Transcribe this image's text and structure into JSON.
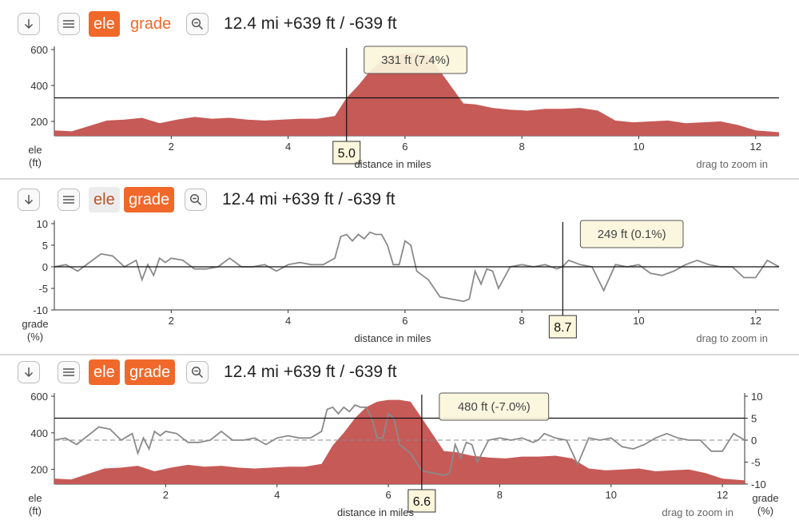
{
  "toolbar": {
    "download_icon": "download-arrow-icon",
    "menu_icon": "hamburger-menu-icon",
    "zoom_icon": "zoom-out-magnifier-icon",
    "ele_label": "ele",
    "grade_label": "grade",
    "summary": "12.4 mi +639 ft / -639 ft"
  },
  "colors": {
    "accent": "#f0692a",
    "elevation_fill": "#c65a57",
    "grade_line": "#8a8a8a",
    "tooltip_bg": "#fbf6dc"
  },
  "panels": [
    {
      "mode": "ele",
      "ele_active": true,
      "grade_active": false,
      "y_label": [
        "ele",
        "(ft)"
      ],
      "x_label": "distance in miles",
      "hint": "drag to zoom in",
      "cursor_x": "5.0",
      "tooltip": "331 ft (7.4%)"
    },
    {
      "mode": "grade",
      "ele_active": false,
      "grade_active": true,
      "y_label": [
        "grade",
        "(%)"
      ],
      "x_label": "distance in miles",
      "hint": "drag to zoom in",
      "cursor_x": "8.7",
      "tooltip": "249 ft (0.1%)"
    },
    {
      "mode": "both",
      "ele_active": true,
      "grade_active": true,
      "y_label": [
        "ele",
        "(ft)"
      ],
      "y2_label": [
        "grade",
        "(%)"
      ],
      "x_label": "distance in miles",
      "hint": "drag to zoom in",
      "cursor_x": "6.6",
      "tooltip": "480 ft (-7.0%)"
    }
  ],
  "chart_data": [
    {
      "type": "area",
      "xlabel": "distance in miles",
      "ylabel": "ele (ft)",
      "xlim": [
        0,
        12.4
      ],
      "ylim": [
        120,
        600
      ],
      "x_ticks": [
        "2",
        "4",
        "6",
        "8",
        "10",
        "12"
      ],
      "y_ticks": [
        "200",
        "400",
        "600"
      ],
      "crosshair": {
        "x": 5.0,
        "y": 331
      },
      "series": [
        {
          "x": [
            0,
            0.3,
            0.6,
            0.9,
            1.2,
            1.5,
            1.8,
            2.1,
            2.4,
            2.7,
            3.0,
            3.3,
            3.6,
            3.9,
            4.2,
            4.5,
            4.8,
            5.0,
            5.2,
            5.4,
            5.6,
            5.8,
            6.0,
            6.2,
            6.4,
            6.6,
            6.8,
            7.0,
            7.2,
            7.5,
            7.8,
            8.1,
            8.4,
            8.7,
            9.0,
            9.3,
            9.6,
            9.9,
            10.2,
            10.5,
            10.8,
            11.1,
            11.4,
            11.7,
            12.0,
            12.4
          ],
          "values": [
            150,
            145,
            175,
            205,
            210,
            220,
            190,
            210,
            225,
            215,
            220,
            210,
            205,
            210,
            215,
            215,
            230,
            331,
            400,
            480,
            540,
            570,
            580,
            580,
            570,
            480,
            390,
            300,
            295,
            275,
            265,
            260,
            270,
            270,
            275,
            260,
            205,
            195,
            200,
            205,
            190,
            195,
            200,
            180,
            150,
            140
          ]
        }
      ]
    },
    {
      "type": "line",
      "xlabel": "distance in miles",
      "ylabel": "grade (%)",
      "xlim": [
        0,
        12.4
      ],
      "ylim": [
        -10,
        10
      ],
      "x_ticks": [
        "2",
        "4",
        "6",
        "8",
        "10",
        "12"
      ],
      "y_ticks": [
        "10",
        "5",
        "0",
        "-5",
        "-10"
      ],
      "crosshair": {
        "x": 8.7,
        "y": 0.1
      },
      "series": [
        {
          "x": [
            0,
            0.2,
            0.4,
            0.6,
            0.8,
            1.0,
            1.2,
            1.4,
            1.5,
            1.6,
            1.7,
            1.8,
            1.9,
            2.0,
            2.2,
            2.4,
            2.6,
            2.8,
            3.0,
            3.2,
            3.4,
            3.6,
            3.8,
            4.0,
            4.2,
            4.4,
            4.6,
            4.8,
            4.9,
            5.0,
            5.1,
            5.2,
            5.3,
            5.4,
            5.5,
            5.6,
            5.7,
            5.8,
            5.9,
            6.0,
            6.1,
            6.2,
            6.3,
            6.4,
            6.6,
            6.8,
            7.0,
            7.1,
            7.2,
            7.3,
            7.4,
            7.5,
            7.6,
            7.8,
            8.0,
            8.2,
            8.4,
            8.6,
            8.7,
            8.8,
            9.0,
            9.2,
            9.4,
            9.6,
            9.8,
            10.0,
            10.2,
            10.4,
            10.6,
            10.8,
            11.0,
            11.2,
            11.4,
            11.6,
            11.8,
            12.0,
            12.2,
            12.4
          ],
          "values": [
            0,
            0.5,
            -1,
            1,
            3,
            2.5,
            0,
            1.5,
            -3,
            0.5,
            -2,
            2,
            1,
            2,
            1.5,
            -0.5,
            -0.5,
            0,
            2,
            0,
            0,
            0.5,
            -1,
            0.5,
            1,
            0.5,
            0.5,
            2,
            7,
            7.5,
            6,
            7.5,
            6.5,
            8,
            7.5,
            7.5,
            5,
            0.5,
            0.5,
            6,
            5,
            -1,
            -2,
            -3,
            -7,
            -7.5,
            -8,
            -7.5,
            -1,
            -4,
            -0.5,
            -1,
            -5,
            0,
            0.5,
            0,
            0.5,
            -0.5,
            0.1,
            1.5,
            0.5,
            0,
            -5.5,
            0.5,
            0,
            0.5,
            -1.5,
            -2,
            -1,
            0.5,
            1.5,
            0.5,
            0,
            0,
            -2.5,
            -2.5,
            1.5,
            0
          ]
        }
      ]
    },
    {
      "type": "area",
      "xlabel": "distance in miles",
      "ylabel": "ele (ft)",
      "y2label": "grade (%)",
      "xlim": [
        0,
        12.4
      ],
      "ylim": [
        120,
        600
      ],
      "y2lim": [
        -10,
        10
      ],
      "x_ticks": [
        "2",
        "4",
        "6",
        "8",
        "10",
        "12"
      ],
      "y_ticks": [
        "200",
        "400",
        "600"
      ],
      "y2_ticks": [
        "10",
        "5",
        "0",
        "-5",
        "-10"
      ],
      "crosshair": {
        "x": 6.6,
        "y": 480
      },
      "series": [
        {
          "name": "ele",
          "x": [
            0,
            0.3,
            0.6,
            0.9,
            1.2,
            1.5,
            1.8,
            2.1,
            2.4,
            2.7,
            3.0,
            3.3,
            3.6,
            3.9,
            4.2,
            4.5,
            4.8,
            5.0,
            5.2,
            5.4,
            5.6,
            5.8,
            6.0,
            6.2,
            6.4,
            6.6,
            6.8,
            7.0,
            7.2,
            7.5,
            7.8,
            8.1,
            8.4,
            8.7,
            9.0,
            9.3,
            9.6,
            9.9,
            10.2,
            10.5,
            10.8,
            11.1,
            11.4,
            11.7,
            12.0,
            12.4
          ],
          "values": [
            150,
            145,
            175,
            205,
            210,
            220,
            190,
            210,
            225,
            215,
            220,
            210,
            205,
            210,
            215,
            215,
            230,
            331,
            400,
            480,
            540,
            570,
            580,
            580,
            570,
            480,
            390,
            300,
            295,
            275,
            265,
            260,
            270,
            270,
            275,
            260,
            205,
            195,
            200,
            205,
            190,
            195,
            200,
            180,
            150,
            140
          ]
        },
        {
          "name": "grade",
          "axis": "right",
          "x": [
            0,
            0.2,
            0.4,
            0.6,
            0.8,
            1.0,
            1.2,
            1.4,
            1.5,
            1.6,
            1.7,
            1.8,
            1.9,
            2.0,
            2.2,
            2.4,
            2.6,
            2.8,
            3.0,
            3.2,
            3.4,
            3.6,
            3.8,
            4.0,
            4.2,
            4.4,
            4.6,
            4.8,
            4.9,
            5.0,
            5.1,
            5.2,
            5.3,
            5.4,
            5.5,
            5.6,
            5.7,
            5.8,
            5.9,
            6.0,
            6.1,
            6.2,
            6.3,
            6.4,
            6.6,
            6.8,
            7.0,
            7.1,
            7.2,
            7.3,
            7.4,
            7.5,
            7.6,
            7.8,
            8.0,
            8.2,
            8.4,
            8.6,
            8.7,
            8.8,
            9.0,
            9.2,
            9.4,
            9.6,
            9.8,
            10.0,
            10.2,
            10.4,
            10.6,
            10.8,
            11.0,
            11.2,
            11.4,
            11.6,
            11.8,
            12.0,
            12.2,
            12.4
          ],
          "values": [
            0,
            0.5,
            -1,
            1,
            3,
            2.5,
            0,
            1.5,
            -3,
            0.5,
            -2,
            2,
            1,
            2,
            1.5,
            -0.5,
            -0.5,
            0,
            2,
            0,
            0,
            0.5,
            -1,
            0.5,
            1,
            0.5,
            0.5,
            2,
            7,
            7.5,
            6,
            7.5,
            6.5,
            8,
            7.5,
            7.5,
            5,
            0.5,
            0.5,
            6,
            5,
            -1,
            -2,
            -3,
            -7,
            -7.5,
            -8,
            -7.5,
            -1,
            -4,
            -0.5,
            -1,
            -5,
            0,
            0.5,
            0,
            0.5,
            -0.5,
            0.1,
            1.5,
            0.5,
            0,
            -5.5,
            0.5,
            0,
            0.5,
            -1.5,
            -2,
            -1,
            0.5,
            1.5,
            0.5,
            0,
            0,
            -2.5,
            -2.5,
            1.5,
            0
          ]
        }
      ]
    }
  ]
}
